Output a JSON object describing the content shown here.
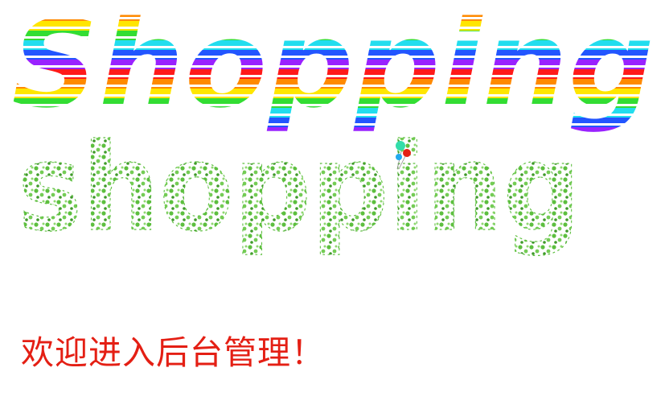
{
  "rainbow_heading": "Shopping",
  "vine_heading": "shopping",
  "welcome_text": "欢迎进入后台管理！",
  "colors": {
    "welcome": "#e41f14",
    "vine": "#5dbf3f",
    "vine_dark": "#3f9a2a",
    "rainbow": [
      "#ff1a1a",
      "#ff8a00",
      "#ffe600",
      "#33dd33",
      "#22ddee",
      "#2255ff",
      "#9922ff"
    ]
  },
  "icons": {
    "balloons": "balloon-cluster-icon"
  }
}
